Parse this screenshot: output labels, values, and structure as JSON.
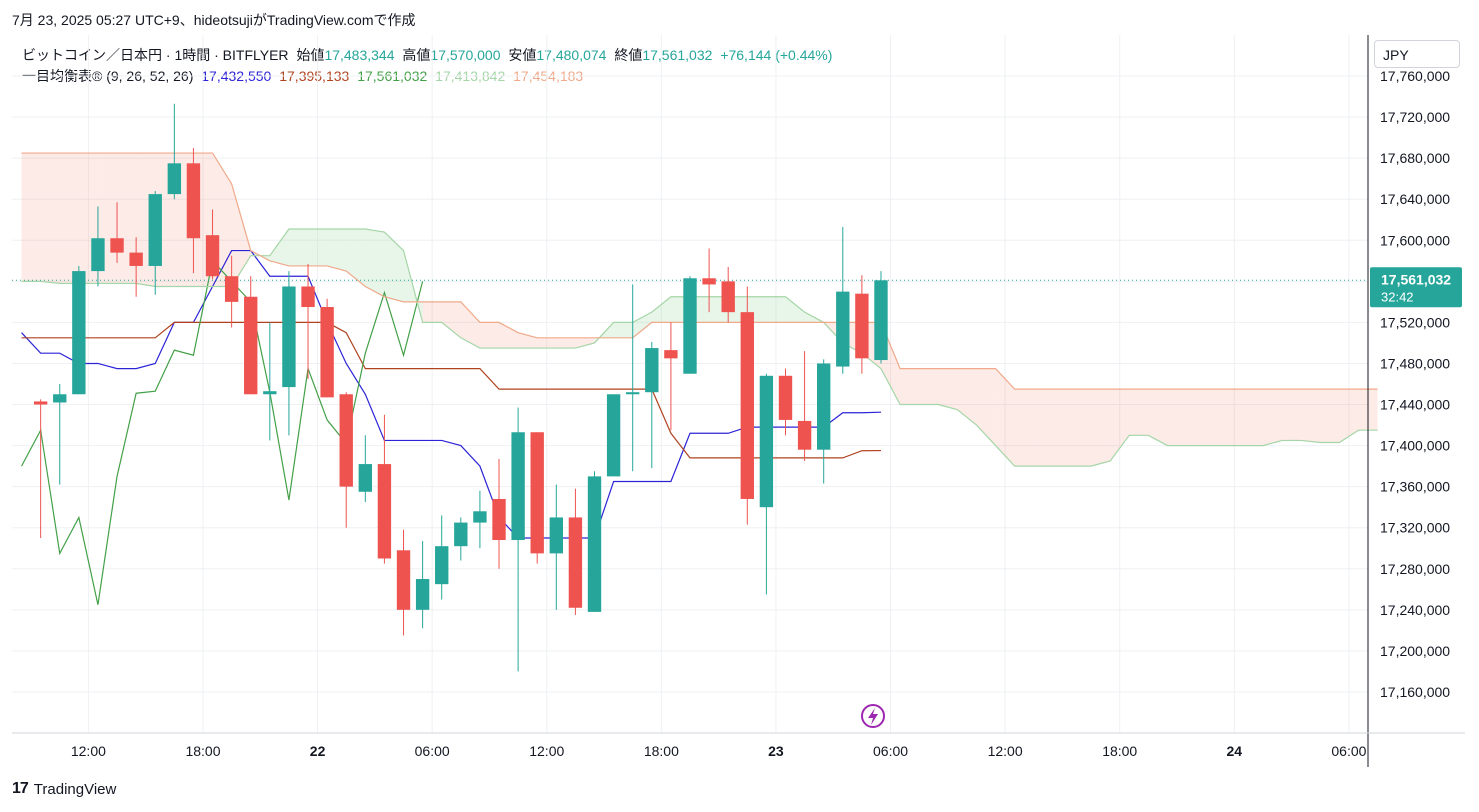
{
  "header": {
    "published": "7月 23, 2025 05:27 UTC+9、hideotsujiがTradingView.comで作成"
  },
  "legend": {
    "symbol": "ビットコイン／日本円 · 1時間 · BITFLYER",
    "open_label": "始値",
    "open": "17,483,344",
    "high_label": "高値",
    "high": "17,570,000",
    "low_label": "安値",
    "low": "17,480,074",
    "close_label": "終値",
    "close": "17,561,032",
    "change": "+76,144 (+0.44%)",
    "indicator": "一目均衡表® (9, 26, 52, 26)",
    "tenkan_val": "17,432,550",
    "kijun_val": "17,395,133",
    "chikou_val": "17,561,032",
    "spanA_val": "17,413,842",
    "spanB_val": "17,454,183"
  },
  "currency": "JPY",
  "price_tag": {
    "price": "17,561,032",
    "countdown": "32:42"
  },
  "footer": {
    "brand": "TradingView"
  },
  "colors": {
    "up": "#26a69a",
    "down": "#ef5350",
    "tenkan": "#2c24d6",
    "kijun": "#b0431f",
    "chikou": "#43a047",
    "spanA": "#a5d6a7",
    "spanB": "#f0a98a",
    "cloud_bull": "rgba(165,214,167,0.25)",
    "cloud_bear": "rgba(244,143,120,0.18)",
    "grid": "#eef0f3",
    "axis_text": "#131722"
  },
  "chart_data": {
    "type": "candlestick",
    "title": "ビットコイン／日本円 · 1時間 · BITFLYER",
    "ylim": [
      17120000,
      17800000
    ],
    "y_ticks": [
      17160000,
      17200000,
      17240000,
      17280000,
      17320000,
      17360000,
      17400000,
      17440000,
      17480000,
      17520000,
      17560000,
      17600000,
      17640000,
      17680000,
      17720000,
      17760000
    ],
    "y_tick_labels": [
      "17,160,000",
      "17,200,000",
      "17,240,000",
      "17,280,000",
      "17,320,000",
      "17,360,000",
      "17,400,000",
      "17,440,000",
      "17,480,000",
      "17,520,000",
      "17,560,000",
      "17,600,000",
      "17,640,000",
      "17,680,000",
      "17,720,000",
      "17,760,000"
    ],
    "x_range": [
      -1.5,
      69.5
    ],
    "x_ticks": [
      {
        "i": 2.5,
        "label": "12:00"
      },
      {
        "i": 8.5,
        "label": "18:00"
      },
      {
        "i": 14.5,
        "label": "22"
      },
      {
        "i": 20.5,
        "label": "06:00"
      },
      {
        "i": 26.5,
        "label": "12:00"
      },
      {
        "i": 32.5,
        "label": "18:00"
      },
      {
        "i": 38.5,
        "label": "23"
      },
      {
        "i": 44.5,
        "label": "06:00"
      },
      {
        "i": 50.5,
        "label": "12:00"
      },
      {
        "i": 56.5,
        "label": "18:00"
      },
      {
        "i": 62.5,
        "label": "24"
      },
      {
        "i": 68.5,
        "label": "06:00"
      }
    ],
    "candles": [
      {
        "o": 17443000,
        "h": 17445000,
        "l": 17310000,
        "c": 17440000
      },
      {
        "o": 17442000,
        "h": 17460000,
        "l": 17362000,
        "c": 17450000
      },
      {
        "o": 17450000,
        "h": 17575000,
        "l": 17450000,
        "c": 17570000
      },
      {
        "o": 17570000,
        "h": 17633000,
        "l": 17555000,
        "c": 17602000
      },
      {
        "o": 17602000,
        "h": 17637000,
        "l": 17578000,
        "c": 17588000
      },
      {
        "o": 17588000,
        "h": 17603000,
        "l": 17545000,
        "c": 17575000
      },
      {
        "o": 17575000,
        "h": 17648000,
        "l": 17547000,
        "c": 17645000
      },
      {
        "o": 17645000,
        "h": 17733000,
        "l": 17640000,
        "c": 17675000
      },
      {
        "o": 17675000,
        "h": 17690000,
        "l": 17568000,
        "c": 17602000
      },
      {
        "o": 17605000,
        "h": 17630000,
        "l": 17562000,
        "c": 17565000
      },
      {
        "o": 17565000,
        "h": 17585000,
        "l": 17515000,
        "c": 17540000
      },
      {
        "o": 17545000,
        "h": 17565000,
        "l": 17452000,
        "c": 17450000
      },
      {
        "o": 17450000,
        "h": 17520000,
        "l": 17405000,
        "c": 17453000
      },
      {
        "o": 17457000,
        "h": 17570000,
        "l": 17410000,
        "c": 17555000
      },
      {
        "o": 17555000,
        "h": 17577000,
        "l": 17465000,
        "c": 17535000
      },
      {
        "o": 17535000,
        "h": 17543000,
        "l": 17447000,
        "c": 17447000
      },
      {
        "o": 17450000,
        "h": 17452000,
        "l": 17320000,
        "c": 17360000
      },
      {
        "o": 17355000,
        "h": 17410000,
        "l": 17345000,
        "c": 17382000
      },
      {
        "o": 17382000,
        "h": 17430000,
        "l": 17285000,
        "c": 17290000
      },
      {
        "o": 17298000,
        "h": 17318000,
        "l": 17215000,
        "c": 17240000
      },
      {
        "o": 17240000,
        "h": 17307000,
        "l": 17222000,
        "c": 17270000
      },
      {
        "o": 17265000,
        "h": 17332000,
        "l": 17250000,
        "c": 17302000
      },
      {
        "o": 17302000,
        "h": 17330000,
        "l": 17288000,
        "c": 17325000
      },
      {
        "o": 17325000,
        "h": 17356000,
        "l": 17300000,
        "c": 17336000
      },
      {
        "o": 17348000,
        "h": 17387000,
        "l": 17280000,
        "c": 17308000
      },
      {
        "o": 17308000,
        "h": 17437000,
        "l": 17180000,
        "c": 17413000
      },
      {
        "o": 17413000,
        "h": 17413000,
        "l": 17285000,
        "c": 17295000
      },
      {
        "o": 17295000,
        "h": 17362000,
        "l": 17240000,
        "c": 17330000
      },
      {
        "o": 17330000,
        "h": 17358000,
        "l": 17235000,
        "c": 17242000
      },
      {
        "o": 17238000,
        "h": 17375000,
        "l": 17238000,
        "c": 17370000
      },
      {
        "o": 17370000,
        "h": 17450000,
        "l": 17370000,
        "c": 17450000
      },
      {
        "o": 17450000,
        "h": 17557000,
        "l": 17375000,
        "c": 17452000
      },
      {
        "o": 17452000,
        "h": 17501000,
        "l": 17378000,
        "c": 17495000
      },
      {
        "o": 17493000,
        "h": 17520000,
        "l": 17415000,
        "c": 17485000
      },
      {
        "o": 17470000,
        "h": 17565000,
        "l": 17470000,
        "c": 17563000
      },
      {
        "o": 17563000,
        "h": 17592000,
        "l": 17530000,
        "c": 17557000
      },
      {
        "o": 17560000,
        "h": 17574000,
        "l": 17520000,
        "c": 17530000
      },
      {
        "o": 17530000,
        "h": 17555000,
        "l": 17323000,
        "c": 17348000
      },
      {
        "o": 17340000,
        "h": 17470000,
        "l": 17255000,
        "c": 17468000
      },
      {
        "o": 17468000,
        "h": 17475000,
        "l": 17410000,
        "c": 17425000
      },
      {
        "o": 17424000,
        "h": 17492000,
        "l": 17385000,
        "c": 17396000
      },
      {
        "o": 17396000,
        "h": 17484000,
        "l": 17363000,
        "c": 17480000
      },
      {
        "o": 17477000,
        "h": 17613000,
        "l": 17470000,
        "c": 17550000
      },
      {
        "o": 17548000,
        "h": 17566000,
        "l": 17470000,
        "c": 17485000
      },
      {
        "o": 17483344,
        "h": 17570000,
        "l": 17480074,
        "c": 17561032
      }
    ],
    "series": [
      {
        "name": "tenkan",
        "start": -1,
        "values": [
          17510000,
          17490000,
          17490000,
          17480000,
          17480000,
          17475000,
          17475000,
          17480000,
          17520000,
          17520000,
          17555000,
          17590000,
          17590000,
          17565000,
          17565000,
          17565000,
          17520000,
          17480000,
          17450000,
          17405000,
          17405000,
          17405000,
          17405000,
          17400000,
          17380000,
          17330000,
          17310000,
          17310000,
          17310000,
          17310000,
          17310000,
          17365000,
          17365000,
          17365000,
          17365000,
          17412000,
          17412000,
          17412000,
          17418000,
          17418000,
          17418000,
          17418000,
          17418000,
          17432000,
          17432000,
          17432550
        ]
      },
      {
        "name": "kijun",
        "start": -1,
        "values": [
          17505000,
          17505000,
          17505000,
          17505000,
          17505000,
          17505000,
          17505000,
          17505000,
          17520000,
          17520000,
          17520000,
          17520000,
          17520000,
          17520000,
          17520000,
          17520000,
          17520000,
          17510000,
          17475000,
          17475000,
          17475000,
          17475000,
          17475000,
          17475000,
          17475000,
          17455000,
          17455000,
          17455000,
          17455000,
          17455000,
          17455000,
          17455000,
          17455000,
          17455000,
          17412000,
          17388000,
          17388000,
          17388000,
          17388000,
          17388000,
          17388000,
          17388000,
          17388000,
          17388000,
          17395000,
          17395133
        ]
      },
      {
        "name": "chikou",
        "start": -1,
        "values": [
          17380000,
          17415000,
          17295000,
          17330000,
          17245000,
          17370000,
          17451000,
          17453000,
          17493000,
          17488000,
          17580000,
          17560000,
          17540000,
          17452000,
          17347000,
          17475000,
          17425000,
          17402000,
          17490000,
          17549000,
          17488000,
          17560000
        ]
      },
      {
        "name": "spanA",
        "start": -1,
        "values": [
          17560000,
          17560000,
          17558000,
          17558000,
          17558000,
          17558000,
          17558000,
          17555000,
          17555000,
          17555000,
          17555000,
          17555000,
          17585000,
          17585000,
          17611000,
          17611000,
          17611000,
          17611000,
          17611000,
          17608000,
          17590000,
          17520000,
          17520000,
          17505000,
          17495000,
          17495000,
          17495000,
          17495000,
          17495000,
          17495000,
          17500000,
          17520000,
          17520000,
          17530000,
          17545000,
          17545000,
          17545000,
          17545000,
          17545000,
          17545000,
          17545000,
          17530000,
          17520000,
          17500000,
          17490000,
          17475000,
          17440000,
          17440000,
          17440000,
          17435000,
          17420000,
          17400000,
          17380000,
          17380000,
          17380000,
          17380000,
          17380000,
          17385000,
          17410000,
          17410000,
          17400000,
          17400000,
          17400000,
          17400000,
          17400000,
          17400000,
          17405000,
          17405000,
          17403000,
          17403000,
          17415000,
          17415000
        ]
      },
      {
        "name": "spanB",
        "start": -1,
        "values": [
          17685000,
          17685000,
          17685000,
          17685000,
          17685000,
          17685000,
          17685000,
          17685000,
          17685000,
          17685000,
          17685000,
          17655000,
          17590000,
          17580000,
          17575000,
          17575000,
          17575000,
          17570000,
          17555000,
          17545000,
          17540000,
          17540000,
          17540000,
          17540000,
          17520000,
          17520000,
          17510000,
          17505000,
          17505000,
          17505000,
          17505000,
          17505000,
          17505000,
          17520000,
          17520000,
          17520000,
          17520000,
          17520000,
          17520000,
          17520000,
          17520000,
          17520000,
          17520000,
          17520000,
          17520000,
          17520000,
          17475000,
          17475000,
          17475000,
          17475000,
          17475000,
          17475000,
          17455000,
          17455000,
          17455000,
          17455000,
          17455000,
          17455000,
          17455000,
          17455000,
          17455000,
          17455000,
          17455000,
          17455000,
          17455000,
          17455000,
          17455000,
          17455000,
          17455000,
          17455000,
          17455000,
          17455000
        ]
      }
    ],
    "last_price": 17561032
  }
}
